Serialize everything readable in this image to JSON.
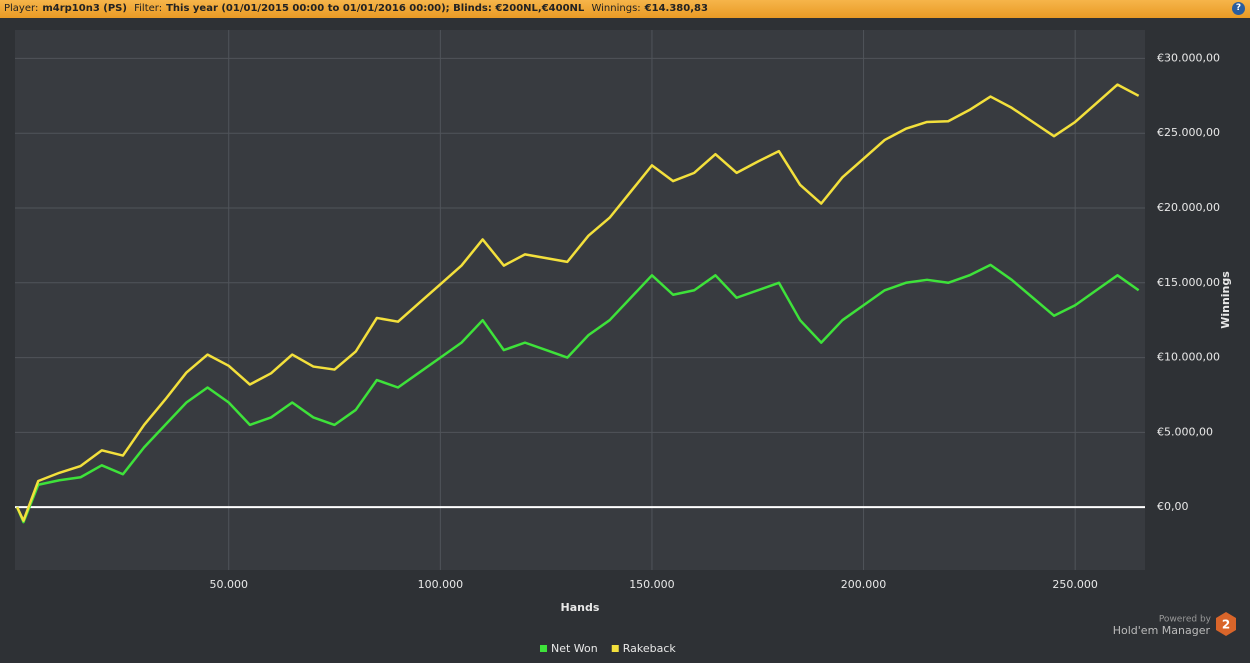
{
  "header": {
    "player_label": "Player:",
    "player": "m4rp10n3 (PS)",
    "filter_label": "Filter:",
    "filter": "This year (01/01/2015 00:00 to 01/01/2016 00:00); Blinds: €200NL,€400NL",
    "winnings_label": "Winnings:",
    "winnings": "€14.380,83",
    "help": "?"
  },
  "footer": {
    "powered_by": "Powered by",
    "product": "Hold'em Manager",
    "version": "2"
  },
  "chart_data": {
    "type": "line",
    "x_label": "Hands",
    "y_label": "Winnings",
    "x": [
      0,
      1500,
      5000,
      10000,
      15000,
      20000,
      25000,
      30000,
      35000,
      40000,
      45000,
      50000,
      55000,
      60000,
      65000,
      70000,
      75000,
      80000,
      85000,
      90000,
      95000,
      100000,
      105000,
      110000,
      115000,
      120000,
      125000,
      130000,
      135000,
      140000,
      145000,
      150000,
      155000,
      160000,
      165000,
      170000,
      175000,
      180000,
      185000,
      190000,
      195000,
      200000,
      205000,
      210000,
      215000,
      220000,
      225000,
      230000,
      235000,
      240000,
      245000,
      250000,
      255000,
      260000,
      265000
    ],
    "series": [
      {
        "name": "Net Won",
        "color": "#3ee23a",
        "values": [
          0,
          -1000,
          1500,
          1800,
          2000,
          2800,
          2200,
          4000,
          5500,
          7000,
          8000,
          7000,
          5500,
          6000,
          7000,
          6000,
          5500,
          6500,
          8500,
          8000,
          9000,
          10000,
          11000,
          12500,
          10500,
          11000,
          10500,
          10000,
          11500,
          12500,
          14000,
          15500,
          14200,
          14500,
          15500,
          14000,
          14500,
          15000,
          12500,
          11000,
          12500,
          13500,
          14500,
          15000,
          15200,
          15000,
          15500,
          16200,
          15200,
          14000,
          12800,
          13500,
          14500,
          15500,
          14500
        ]
      },
      {
        "name": "Rakeback",
        "color": "#f3e03c",
        "values": [
          0,
          -900,
          1750,
          2300,
          2750,
          3800,
          3450,
          5500,
          7200,
          9000,
          10200,
          9450,
          8200,
          8950,
          10200,
          9400,
          9200,
          10400,
          12650,
          12400,
          13650,
          14900,
          16150,
          17900,
          16150,
          16900,
          16650,
          16400,
          18150,
          19350,
          21100,
          22850,
          21800,
          22350,
          23600,
          22350,
          23100,
          23800,
          21550,
          20300,
          22050,
          23300,
          24550,
          25300,
          25750,
          25800,
          26550,
          27450,
          26700,
          25750,
          24800,
          25750,
          27000,
          28250,
          27500
        ]
      }
    ],
    "xlim": [
      -500,
      266500
    ],
    "ylim": [
      -4200,
      31900
    ],
    "xticks": [
      {
        "value": 50000,
        "label": "50.000"
      },
      {
        "value": 100000,
        "label": "100.000"
      },
      {
        "value": 150000,
        "label": "150.000"
      },
      {
        "value": 200000,
        "label": "200.000"
      },
      {
        "value": 250000,
        "label": "250.000"
      }
    ],
    "yticks": [
      {
        "value": 0,
        "label": "€0,00"
      },
      {
        "value": 5000,
        "label": "€5.000,00"
      },
      {
        "value": 10000,
        "label": "€10.000,00"
      },
      {
        "value": 15000,
        "label": "€15.000,00"
      },
      {
        "value": 20000,
        "label": "€20.000,00"
      },
      {
        "value": 25000,
        "label": "€25.000,00"
      },
      {
        "value": 30000,
        "label": "€30.000,00"
      }
    ],
    "grid": true
  }
}
